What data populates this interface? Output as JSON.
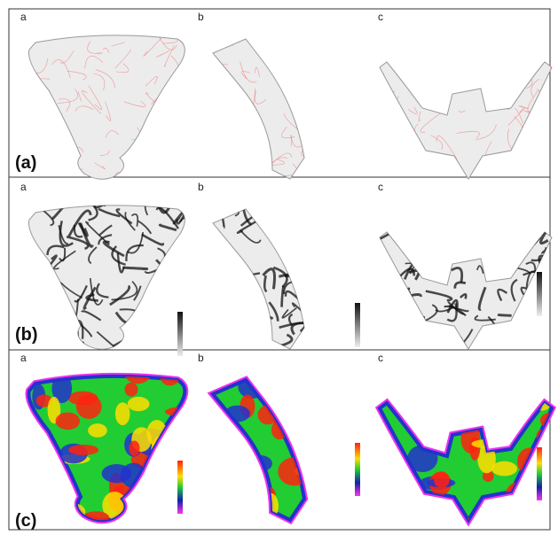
{
  "rows": [
    {
      "label": "(a)",
      "panels": [
        "a",
        "b",
        "c"
      ]
    },
    {
      "label": "(b)",
      "panels": [
        "a",
        "b",
        "c"
      ]
    },
    {
      "label": "(c)",
      "panels": [
        "a",
        "b",
        "c"
      ]
    }
  ]
}
